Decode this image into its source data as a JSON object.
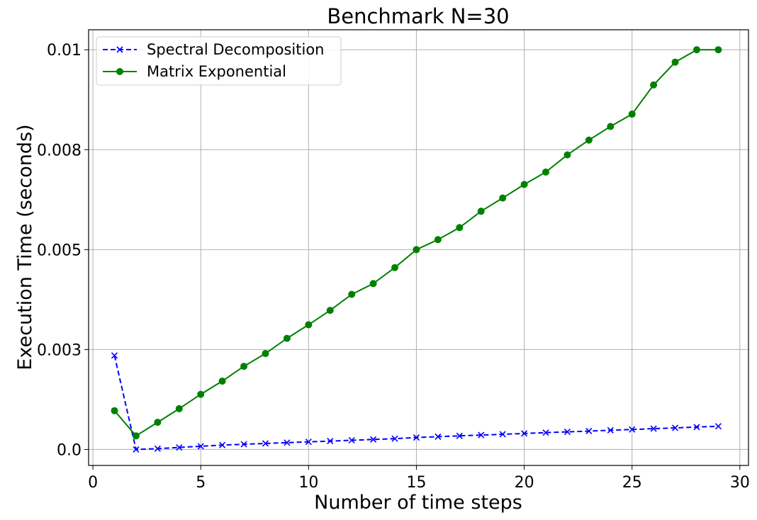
{
  "chart_data": {
    "type": "line",
    "title": "Benchmark N=30",
    "xlabel": "Number of time steps",
    "ylabel": "Execution Time (seconds)",
    "xlim": [
      -0.2,
      30.4
    ],
    "ylim": [
      -0.0004,
      0.0105
    ],
    "xticks": [
      0,
      5,
      10,
      15,
      20,
      25,
      30
    ],
    "xtick_labels": [
      "0",
      "5",
      "10",
      "15",
      "20",
      "25",
      "30"
    ],
    "yticks": [
      0,
      0.0025,
      0.005,
      0.0075,
      0.01
    ],
    "ytick_labels": [
      "0.0",
      "0.003",
      "0.005",
      "0.008",
      "0.01"
    ],
    "grid": true,
    "legend": "upper left",
    "x": [
      1,
      2,
      3,
      4,
      5,
      6,
      7,
      8,
      9,
      10,
      11,
      12,
      13,
      14,
      15,
      16,
      17,
      18,
      19,
      20,
      21,
      22,
      23,
      24,
      25,
      26,
      27,
      28,
      29
    ],
    "series": [
      {
        "name": "Spectral Decomposition",
        "color": "#0000ff",
        "linestyle": "dashed",
        "marker": "x",
        "values": [
          0.00235,
          0.0,
          2e-05,
          5e-05,
          8e-05,
          0.00011,
          0.00013,
          0.00015,
          0.00017,
          0.00019,
          0.00021,
          0.00023,
          0.00025,
          0.00027,
          0.0003,
          0.00032,
          0.00034,
          0.00036,
          0.00038,
          0.0004,
          0.00042,
          0.00044,
          0.00046,
          0.00048,
          0.0005,
          0.00052,
          0.00054,
          0.00056,
          0.00058
        ]
      },
      {
        "name": "Matrix Exponential",
        "color": "#008000",
        "linestyle": "solid",
        "marker": "o",
        "values": [
          0.00097,
          0.00034,
          0.00068,
          0.00102,
          0.00138,
          0.00171,
          0.00208,
          0.0024,
          0.00278,
          0.00312,
          0.00348,
          0.00388,
          0.00415,
          0.00455,
          0.005,
          0.00525,
          0.00555,
          0.00596,
          0.00629,
          0.00663,
          0.00694,
          0.00737,
          0.00774,
          0.00808,
          0.00839,
          0.00912,
          0.00969,
          0.01,
          0.01
        ]
      }
    ]
  }
}
